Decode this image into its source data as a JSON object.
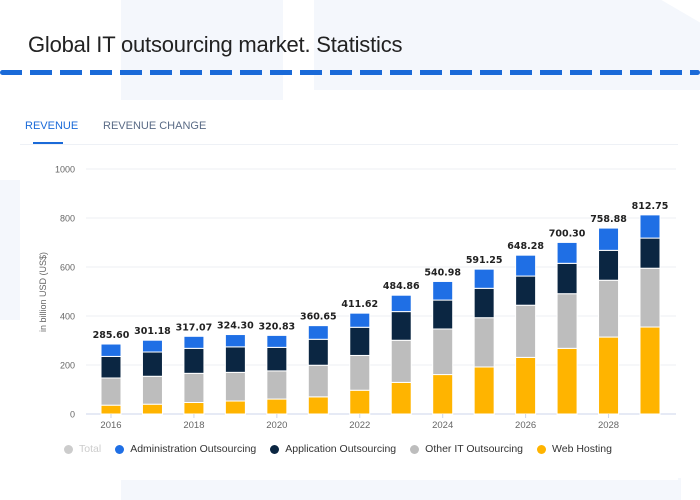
{
  "header": {
    "title": "Global IT outsourcing market. Statistics"
  },
  "tabs": [
    {
      "label": "REVENUE",
      "active": true
    },
    {
      "label": "REVENUE CHANGE",
      "active": false
    }
  ],
  "colors": {
    "accent": "#1a6ad8",
    "admin": "#1f6fe5",
    "app": "#0b2642",
    "other": "#bdbdbd",
    "web": "#ffb400",
    "total": "#cccccc"
  },
  "chart_data": {
    "type": "bar",
    "stacked": true,
    "ylabel": "in billion USD (US$)",
    "ylim": [
      0,
      1000
    ],
    "yticks": [
      0,
      200,
      400,
      600,
      800,
      1000
    ],
    "grid": true,
    "legend_position": "bottom",
    "categories": [
      "2016",
      "2017",
      "2018",
      "2019",
      "2020",
      "2021",
      "2022",
      "2023",
      "2024",
      "2025",
      "2026",
      "2027",
      "2028",
      "2029"
    ],
    "xtick_labels": [
      "2016",
      "2018",
      "2020",
      "2022",
      "2024",
      "2026",
      "2028"
    ],
    "totals": [
      "285.60",
      "301.18",
      "317.07",
      "324.30",
      "320.83",
      "360.65",
      "411.62",
      "484.86",
      "540.98",
      "591.25",
      "648.28",
      "700.30",
      "758.88",
      "812.75"
    ],
    "series": [
      {
        "name": "Web Hosting",
        "values": [
          36,
          40,
          47,
          53,
          61,
          70,
          97,
          129,
          161,
          192,
          231,
          268,
          314,
          355
        ]
      },
      {
        "name": "Other IT Outsourcing",
        "values": [
          111,
          114,
          119,
          117,
          115,
          129,
          142,
          172,
          186,
          201,
          213,
          223,
          232,
          240
        ]
      },
      {
        "name": "Application Outsourcing",
        "values": [
          88,
          99,
          102,
          104,
          96,
          106,
          115,
          117,
          118,
          120,
          119,
          124,
          122,
          123
        ]
      },
      {
        "name": "Administration Outsourcing",
        "values": [
          50.6,
          48.18,
          49.07,
          50.3,
          48.83,
          55.65,
          57.62,
          66.86,
          75.98,
          78.25,
          85.28,
          85.3,
          90.88,
          94.75
        ]
      }
    ],
    "legend": [
      {
        "name": "Total",
        "color": "#cccccc",
        "disabled": true
      },
      {
        "name": "Administration Outsourcing",
        "color": "#1f6fe5"
      },
      {
        "name": "Application Outsourcing",
        "color": "#0b2642"
      },
      {
        "name": "Other IT Outsourcing",
        "color": "#bdbdbd"
      },
      {
        "name": "Web Hosting",
        "color": "#ffb400"
      }
    ]
  }
}
